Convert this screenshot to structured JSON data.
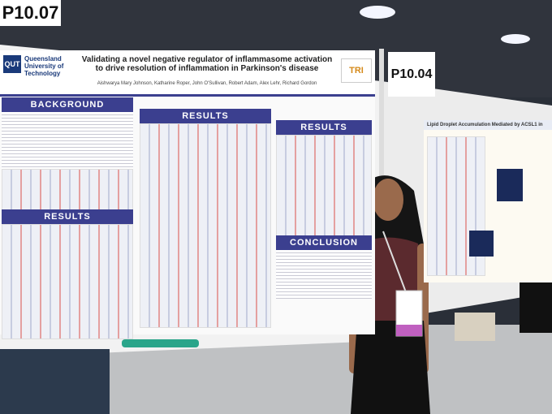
{
  "signs": {
    "left": "P10.07",
    "right": "P10.04"
  },
  "poster": {
    "logo": "QUT",
    "institution": "Queensland University of Technology",
    "title": "Validating a novel negative regulator of inflammasome activation to drive resolution of inflammation in Parkinson's disease",
    "authors": "Aishwarya Mary Johnson, Katharine Roper, John O'Sullivan, Robert Adam, Alex Lehr, Richard Gordon",
    "badge": "TRI",
    "sections": [
      "BACKGROUND",
      "RESULTS",
      "RESULTS",
      "RESULTS",
      "CONCLUSION"
    ]
  },
  "neighbor_poster": {
    "title": "Lipid Droplet Accumulation Mediated by ACSL1 in"
  }
}
